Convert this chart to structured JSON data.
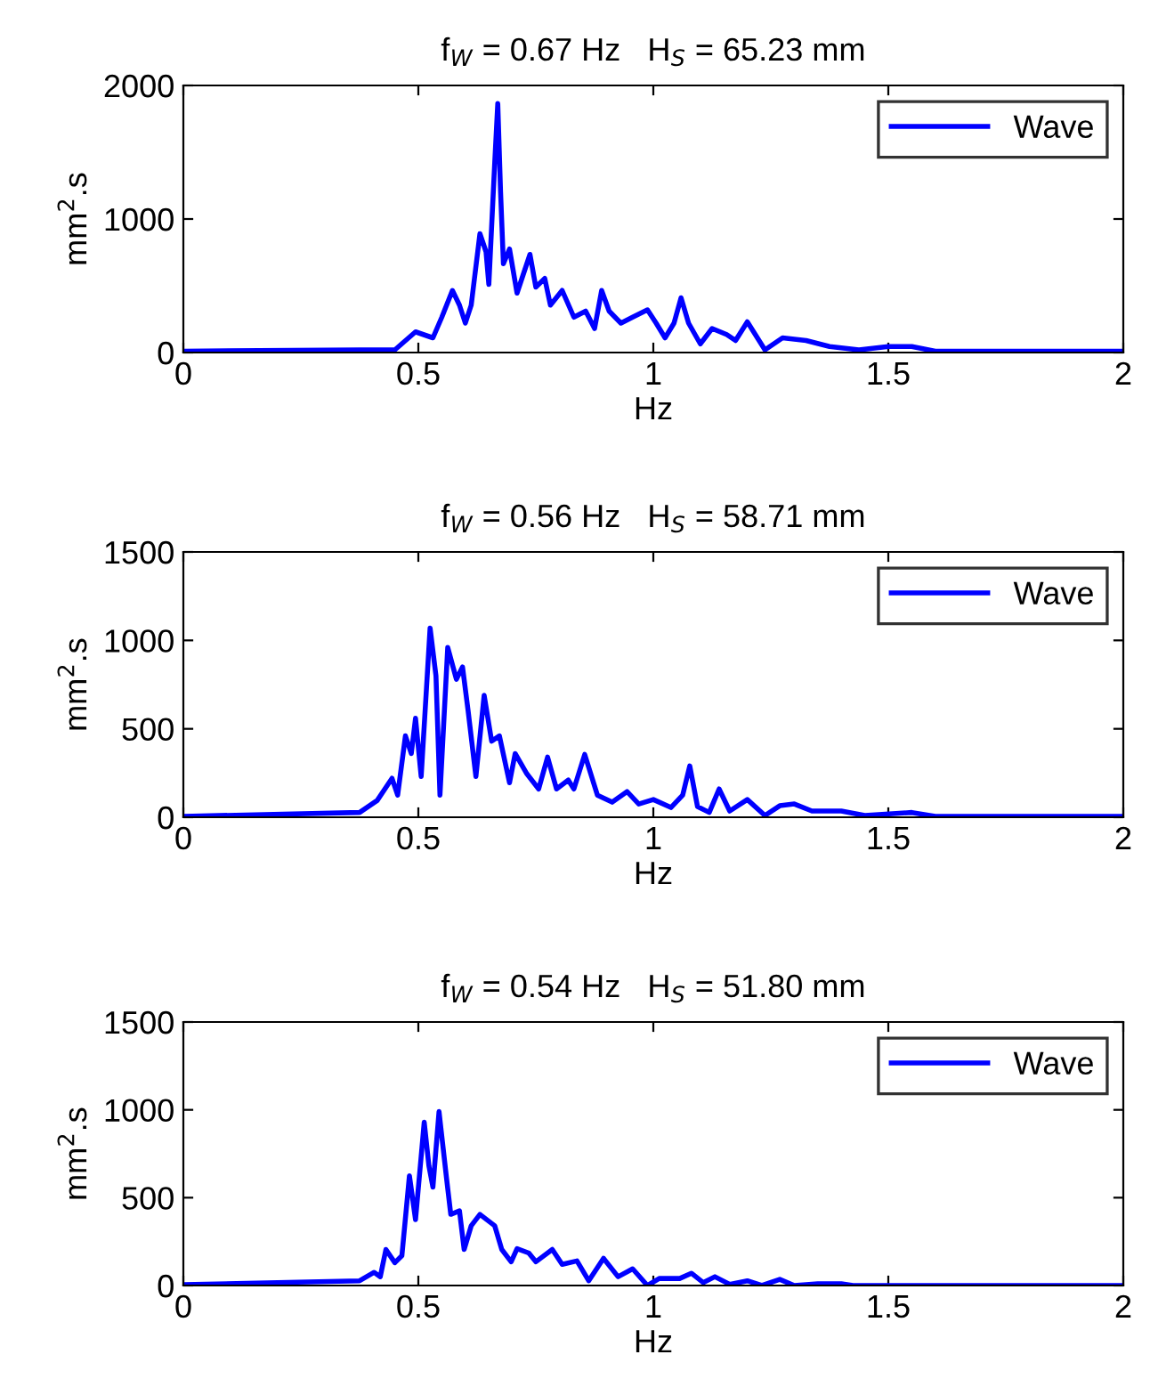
{
  "chart_data": [
    {
      "type": "line",
      "title": "f$_{W}$ = 0.67 Hz   H$_{S}$ = 65.23 mm",
      "xlabel": "Hz",
      "ylabel": "mm$^{2}$.s",
      "xlim": [
        0,
        2
      ],
      "xticks": [
        0,
        0.5,
        1,
        1.5,
        2
      ],
      "ylim": [
        0,
        2000
      ],
      "yticks": [
        0,
        1000,
        2000
      ],
      "legend": "top right",
      "grid": false,
      "x": [
        0,
        0.375,
        0.45,
        0.494,
        0.531,
        0.55,
        0.5725,
        0.5875,
        0.6,
        0.6125,
        0.631,
        0.644,
        0.65,
        0.6625,
        0.669,
        0.675,
        0.681,
        0.694,
        0.71,
        0.7375,
        0.75,
        0.769,
        0.781,
        0.806,
        0.831,
        0.856,
        0.875,
        0.89,
        0.906,
        0.931,
        0.956,
        0.9875,
        1.006,
        1.025,
        1.044,
        1.059,
        1.075,
        1.1,
        1.125,
        1.156,
        1.175,
        1.2,
        1.2375,
        1.275,
        1.325,
        1.375,
        1.4375,
        1.5,
        1.55,
        1.6,
        2
      ],
      "series": [
        {
          "name": "Wave",
          "color": "#0000ff",
          "values": [
            10,
            20,
            20,
            155,
            110,
            265,
            465,
            355,
            220,
            355,
            890,
            755,
            510,
            1420,
            1865,
            1200,
            665,
            775,
            445,
            735,
            490,
            555,
            355,
            465,
            265,
            310,
            180,
            465,
            310,
            220,
            265,
            320,
            220,
            110,
            220,
            410,
            220,
            65,
            180,
            135,
            90,
            230,
            20,
            110,
            90,
            45,
            20,
            45,
            45,
            10,
            10
          ]
        }
      ]
    },
    {
      "type": "line",
      "title": "f$_{W}$ = 0.56 Hz   H$_{S}$ = 58.71 mm",
      "xlabel": "Hz",
      "ylabel": "mm$^{2}$.s",
      "xlim": [
        0,
        2
      ],
      "xticks": [
        0,
        0.5,
        1,
        1.5,
        2
      ],
      "ylim": [
        0,
        1500
      ],
      "yticks": [
        0,
        500,
        1000,
        1500
      ],
      "legend": "top right",
      "grid": false,
      "x": [
        0,
        0.375,
        0.4125,
        0.444,
        0.456,
        0.4725,
        0.485,
        0.494,
        0.506,
        0.525,
        0.5375,
        0.546,
        0.5625,
        0.581,
        0.594,
        0.606,
        0.6225,
        0.64,
        0.656,
        0.6725,
        0.694,
        0.706,
        0.731,
        0.756,
        0.775,
        0.794,
        0.819,
        0.831,
        0.854,
        0.881,
        0.9125,
        0.944,
        0.969,
        1.0,
        1.0375,
        1.0625,
        1.0775,
        1.094,
        1.119,
        1.14,
        1.1625,
        1.2,
        1.2375,
        1.269,
        1.3,
        1.3375,
        1.4,
        1.45,
        1.55,
        1.6,
        2
      ],
      "series": [
        {
          "name": "Wave",
          "color": "#0000ff",
          "values": [
            5,
            27,
            95,
            220,
            125,
            460,
            360,
            560,
            230,
            1070,
            800,
            125,
            960,
            780,
            850,
            600,
            230,
            690,
            430,
            460,
            195,
            360,
            245,
            160,
            340,
            160,
            210,
            160,
            355,
            125,
            85,
            145,
            75,
            100,
            55,
            125,
            290,
            60,
            27,
            160,
            35,
            100,
            10,
            65,
            75,
            35,
            35,
            10,
            27,
            5,
            5
          ]
        }
      ]
    },
    {
      "type": "line",
      "title": "f$_{W}$ = 0.54 Hz   H$_{S}$ = 51.80 mm",
      "xlabel": "Hz",
      "ylabel": "mm$^{2}$.s",
      "xlim": [
        0,
        2
      ],
      "xticks": [
        0,
        0.5,
        1,
        1.5,
        2
      ],
      "ylim": [
        0,
        1500
      ],
      "yticks": [
        0,
        500,
        1000,
        1500
      ],
      "legend": "top right",
      "grid": false,
      "x": [
        0,
        0.375,
        0.406,
        0.419,
        0.431,
        0.45,
        0.465,
        0.481,
        0.494,
        0.5125,
        0.5225,
        0.531,
        0.544,
        0.56,
        0.569,
        0.5875,
        0.5975,
        0.6125,
        0.631,
        0.6625,
        0.6775,
        0.6975,
        0.71,
        0.735,
        0.75,
        0.785,
        0.806,
        0.8375,
        0.8625,
        0.894,
        0.925,
        0.956,
        0.9875,
        1.0125,
        1.056,
        1.081,
        1.106,
        1.131,
        1.1625,
        1.2,
        1.231,
        1.269,
        1.3,
        1.35,
        1.4,
        1.425,
        1.575,
        2
      ],
      "series": [
        {
          "name": "Wave",
          "color": "#0000ff",
          "values": [
            5,
            27,
            75,
            50,
            205,
            130,
            170,
            625,
            375,
            930,
            680,
            560,
            990,
            610,
            405,
            425,
            205,
            340,
            405,
            340,
            205,
            135,
            210,
            185,
            135,
            205,
            120,
            140,
            27,
            155,
            50,
            95,
            0,
            40,
            40,
            70,
            17,
            50,
            7,
            27,
            0,
            35,
            0,
            10,
            10,
            0,
            0,
            0
          ]
        }
      ]
    }
  ]
}
